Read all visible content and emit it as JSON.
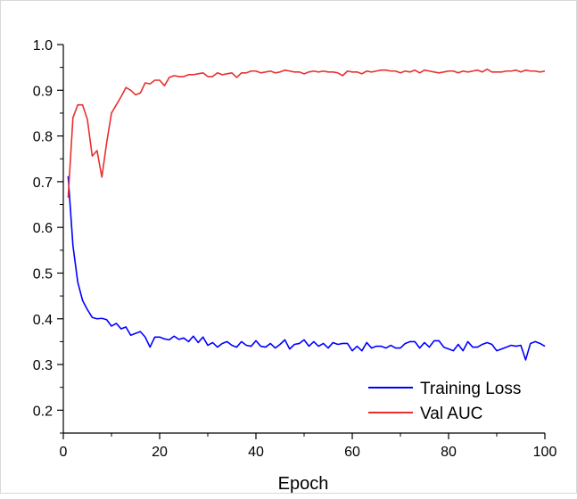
{
  "chart_data": {
    "type": "line",
    "title": "",
    "xlabel": "Epoch",
    "ylabel": "",
    "xlim": [
      0,
      100
    ],
    "ylim": [
      0.15,
      1.0
    ],
    "x_ticks": [
      0,
      20,
      40,
      60,
      80,
      100
    ],
    "y_ticks": [
      0.2,
      0.3,
      0.4,
      0.5,
      0.6,
      0.7,
      0.8,
      0.9,
      1.0
    ],
    "x_tick_labels": [
      "0",
      "20",
      "40",
      "60",
      "80",
      "100"
    ],
    "y_tick_labels": [
      "0.2",
      "0.3",
      "0.4",
      "0.5",
      "0.6",
      "0.7",
      "0.8",
      "0.9",
      "1.0"
    ],
    "grid": false,
    "legend_position": "bottom-right",
    "x": [
      1,
      2,
      3,
      4,
      5,
      6,
      7,
      8,
      9,
      10,
      11,
      12,
      13,
      14,
      15,
      16,
      17,
      18,
      19,
      20,
      21,
      22,
      23,
      24,
      25,
      26,
      27,
      28,
      29,
      30,
      31,
      32,
      33,
      34,
      35,
      36,
      37,
      38,
      39,
      40,
      41,
      42,
      43,
      44,
      45,
      46,
      47,
      48,
      49,
      50,
      51,
      52,
      53,
      54,
      55,
      56,
      57,
      58,
      59,
      60,
      61,
      62,
      63,
      64,
      65,
      66,
      67,
      68,
      69,
      70,
      71,
      72,
      73,
      74,
      75,
      76,
      77,
      78,
      79,
      80,
      81,
      82,
      83,
      84,
      85,
      86,
      87,
      88,
      89,
      90,
      91,
      92,
      93,
      94,
      95,
      96,
      97,
      98,
      99,
      100
    ],
    "series": [
      {
        "name": "Training Loss",
        "color": "#0000ff",
        "values": [
          0.712,
          0.56,
          0.48,
          0.44,
          0.42,
          0.403,
          0.4,
          0.401,
          0.398,
          0.384,
          0.39,
          0.378,
          0.382,
          0.364,
          0.368,
          0.372,
          0.36,
          0.338,
          0.36,
          0.36,
          0.356,
          0.354,
          0.362,
          0.355,
          0.358,
          0.35,
          0.362,
          0.348,
          0.36,
          0.342,
          0.348,
          0.338,
          0.346,
          0.35,
          0.342,
          0.338,
          0.35,
          0.342,
          0.34,
          0.352,
          0.34,
          0.338,
          0.346,
          0.336,
          0.344,
          0.354,
          0.334,
          0.344,
          0.346,
          0.354,
          0.34,
          0.35,
          0.34,
          0.346,
          0.336,
          0.348,
          0.344,
          0.346,
          0.346,
          0.33,
          0.34,
          0.33,
          0.348,
          0.336,
          0.34,
          0.34,
          0.336,
          0.342,
          0.336,
          0.336,
          0.346,
          0.35,
          0.35,
          0.336,
          0.348,
          0.338,
          0.352,
          0.352,
          0.338,
          0.334,
          0.33,
          0.344,
          0.33,
          0.35,
          0.338,
          0.338,
          0.344,
          0.348,
          0.344,
          0.33,
          0.334,
          0.338,
          0.342,
          0.34,
          0.342,
          0.31,
          0.346,
          0.35,
          0.346,
          0.34
        ]
      },
      {
        "name": "Val AUC",
        "color": "#e8302e",
        "values": [
          0.665,
          0.84,
          0.868,
          0.868,
          0.836,
          0.756,
          0.768,
          0.71,
          0.785,
          0.85,
          0.868,
          0.886,
          0.906,
          0.9,
          0.89,
          0.894,
          0.916,
          0.914,
          0.922,
          0.922,
          0.91,
          0.928,
          0.932,
          0.93,
          0.93,
          0.934,
          0.934,
          0.936,
          0.938,
          0.93,
          0.93,
          0.938,
          0.934,
          0.936,
          0.938,
          0.928,
          0.938,
          0.938,
          0.942,
          0.942,
          0.938,
          0.94,
          0.942,
          0.938,
          0.94,
          0.944,
          0.942,
          0.94,
          0.94,
          0.936,
          0.94,
          0.942,
          0.94,
          0.942,
          0.94,
          0.94,
          0.938,
          0.932,
          0.942,
          0.94,
          0.94,
          0.936,
          0.942,
          0.94,
          0.942,
          0.944,
          0.944,
          0.942,
          0.942,
          0.938,
          0.942,
          0.94,
          0.944,
          0.938,
          0.944,
          0.942,
          0.94,
          0.938,
          0.94,
          0.942,
          0.942,
          0.938,
          0.942,
          0.94,
          0.942,
          0.944,
          0.94,
          0.946,
          0.94,
          0.94,
          0.94,
          0.942,
          0.942,
          0.944,
          0.94,
          0.944,
          0.942,
          0.942,
          0.94,
          0.942
        ]
      }
    ]
  }
}
